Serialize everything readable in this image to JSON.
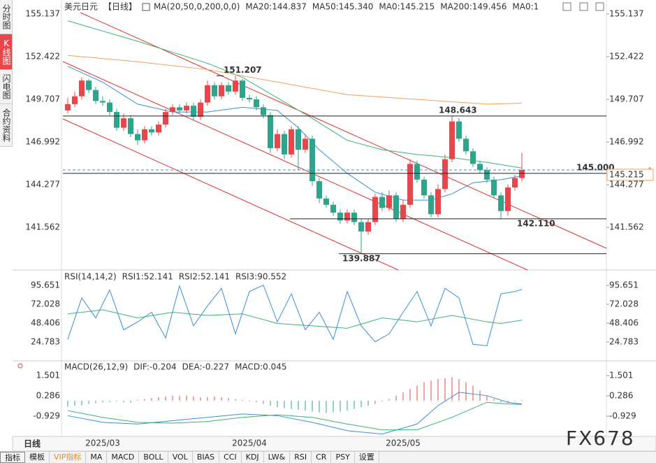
{
  "chart_data": [
    {
      "type": "candlestick",
      "title": "美元日元",
      "period": "【日线】",
      "indicator": "MA(20,50,0,200,0,0)",
      "categories": [
        null,
        null,
        null,
        null,
        null,
        "2025/03",
        null,
        null,
        null,
        null,
        null,
        null,
        null,
        null,
        null,
        null,
        null,
        null,
        null,
        null,
        null,
        null,
        null,
        null,
        null,
        null,
        "2025/04",
        null,
        null,
        null,
        null,
        null,
        null,
        null,
        null,
        null,
        null,
        null,
        null,
        null,
        null,
        null,
        null,
        null,
        null,
        null,
        null,
        null,
        "2025/05",
        null,
        null,
        null,
        null,
        null,
        null,
        null,
        null,
        null,
        null,
        null,
        null,
        null,
        null,
        null,
        null,
        null
      ],
      "open": [
        149.0,
        149.4,
        149.9,
        150.9,
        150.3,
        149.6,
        149.5,
        148.9,
        147.9,
        148.5,
        147.5,
        147.1,
        147.8,
        147.6,
        148.1,
        148.9,
        149.2,
        149.0,
        149.3,
        148.6,
        149.5,
        150.6,
        149.9,
        150.6,
        150.2,
        150.9,
        149.8,
        149.7,
        149.2,
        148.7,
        146.6,
        147.5,
        146.2,
        147.8,
        146.5,
        147.2,
        144.5,
        143.4,
        143.0,
        142.5,
        142.0,
        142.5,
        141.9,
        141.3,
        141.9,
        143.5,
        142.8,
        143.6,
        142.1,
        143.0,
        145.6,
        144.6,
        143.6,
        142.4,
        144.0,
        145.9,
        148.3,
        147.2,
        146.4,
        145.6,
        145.2,
        144.6,
        143.6,
        142.6,
        144.1,
        144.7
      ],
      "high": [
        149.8,
        150.2,
        151.1,
        151.0,
        150.5,
        149.9,
        149.7,
        149.1,
        148.8,
        148.7,
        147.8,
        148.0,
        148.0,
        148.3,
        149.1,
        149.4,
        149.4,
        149.5,
        149.5,
        149.7,
        150.9,
        150.8,
        150.8,
        150.8,
        151.207,
        151.0,
        150.0,
        149.9,
        149.4,
        148.9,
        147.8,
        147.7,
        148.0,
        148.0,
        147.5,
        147.4,
        144.7,
        143.6,
        143.2,
        142.7,
        142.7,
        142.7,
        142.1,
        142.1,
        143.7,
        143.8,
        143.9,
        143.8,
        143.3,
        145.9,
        145.8,
        144.8,
        143.8,
        144.3,
        146.2,
        148.643,
        148.5,
        147.4,
        146.6,
        145.8,
        145.4,
        144.8,
        143.8,
        144.3,
        144.9,
        146.3
      ],
      "low": [
        148.8,
        149.2,
        149.7,
        150.1,
        149.4,
        149.3,
        148.7,
        147.7,
        147.7,
        147.3,
        146.8,
        146.9,
        147.4,
        147.4,
        147.9,
        148.7,
        148.8,
        148.8,
        148.4,
        148.4,
        149.3,
        149.7,
        149.7,
        150.0,
        150.0,
        149.6,
        149.5,
        149.0,
        148.5,
        146.3,
        146.4,
        145.9,
        146.0,
        145.2,
        146.3,
        144.2,
        143.1,
        142.8,
        142.3,
        141.8,
        141.8,
        141.7,
        139.887,
        141.1,
        141.7,
        142.6,
        142.6,
        141.9,
        141.9,
        142.8,
        144.4,
        143.4,
        142.2,
        142.2,
        143.8,
        145.7,
        147.0,
        146.2,
        145.4,
        145.0,
        144.4,
        143.4,
        142.11,
        142.3,
        143.9,
        144.5
      ],
      "close": [
        149.4,
        149.9,
        150.9,
        150.3,
        149.6,
        149.5,
        148.9,
        147.9,
        148.5,
        147.5,
        147.1,
        147.8,
        147.6,
        148.1,
        148.9,
        149.2,
        149.0,
        149.3,
        148.6,
        149.5,
        150.6,
        149.9,
        150.6,
        150.2,
        150.9,
        149.8,
        149.7,
        149.2,
        148.7,
        146.6,
        147.5,
        146.2,
        147.8,
        146.5,
        147.2,
        144.5,
        143.4,
        143.0,
        142.5,
        142.0,
        142.5,
        141.9,
        141.3,
        141.9,
        143.5,
        142.8,
        143.6,
        142.1,
        143.0,
        145.6,
        144.6,
        143.6,
        142.4,
        144.0,
        145.9,
        148.3,
        147.2,
        146.4,
        145.6,
        145.2,
        144.6,
        143.6,
        142.6,
        144.1,
        144.7,
        145.215
      ],
      "up_color": "#e8464a",
      "down_color": "#2ea58a",
      "series": [
        {
          "name": "MA20:144.837",
          "color": "#3b8fd6",
          "x": [
            0,
            5,
            10,
            15,
            20,
            25,
            30,
            33,
            36,
            40,
            44,
            48,
            52,
            55,
            58,
            62,
            65
          ],
          "values": [
            151.8,
            150.8,
            149.4,
            148.9,
            148.9,
            149.2,
            149.0,
            147.9,
            146.5,
            145.0,
            143.8,
            143.3,
            143.3,
            143.7,
            144.4,
            144.6,
            144.837
          ]
        },
        {
          "name": "MA50:145.340",
          "color": "#3cb371",
          "x": [
            0,
            10,
            20,
            25,
            30,
            35,
            40,
            45,
            50,
            55,
            60,
            65
          ],
          "values": [
            154.7,
            153.4,
            152.0,
            151.1,
            149.8,
            148.5,
            147.1,
            146.5,
            146.2,
            146.0,
            145.7,
            145.34
          ]
        },
        {
          "name": "MA200:149.456",
          "color": "#f0a060",
          "x": [
            0,
            10,
            20,
            30,
            40,
            50,
            60,
            65
          ],
          "values": [
            152.5,
            152.1,
            151.6,
            150.8,
            150.0,
            149.7,
            149.4,
            149.456
          ]
        }
      ],
      "extra_legend": [
        {
          "name": "MA0:145.215",
          "color": "#3b8fd6"
        },
        {
          "name": "MA0:1",
          "color": "#e88ad0"
        }
      ],
      "levels": {
        "values": [
          151.207,
          148.643,
          145.0,
          145.215,
          142.11,
          139.887
        ],
        "value_labels": [
          "151.207",
          "148.643",
          "145.000",
          "145.215",
          "142.110",
          "139.887"
        ]
      },
      "ylim": [
        138.9,
        155.8
      ],
      "yticks": [
        155.137,
        152.422,
        149.707,
        146.992,
        144.277,
        141.562
      ]
    },
    {
      "type": "line",
      "title": "RSI(14,14,2)",
      "series": [
        {
          "name": "RSI1:52.141",
          "color": "#3b8fd6",
          "x": [
            0,
            5,
            10,
            15,
            20,
            25,
            30,
            35,
            40,
            45,
            50,
            55,
            60,
            62,
            65
          ],
          "values": [
            60,
            65,
            55,
            62,
            58,
            60,
            48,
            45,
            42,
            55,
            50,
            58,
            50,
            48,
            52.141
          ]
        },
        {
          "name": "RSI3:90.552",
          "color": "#3b8fd6",
          "x": [
            0,
            2,
            4,
            6,
            8,
            10,
            12,
            14,
            16,
            18,
            20,
            22,
            24,
            26,
            28,
            30,
            32,
            34,
            36,
            38,
            40,
            42,
            44,
            46,
            48,
            50,
            52,
            54,
            56,
            58,
            60,
            62,
            64,
            65
          ],
          "values": [
            28,
            80,
            55,
            90,
            40,
            50,
            62,
            30,
            95,
            45,
            70,
            92,
            35,
            88,
            96,
            50,
            85,
            40,
            62,
            28,
            88,
            45,
            25,
            35,
            62,
            88,
            45,
            92,
            80,
            22,
            20,
            85,
            88,
            90.552
          ]
        }
      ],
      "extra_legend": [
        {
          "name": "RSI2:52.141",
          "color": "#3cb371"
        }
      ],
      "ylim": [
        2.0,
        113.2
      ],
      "yticks": [
        95.651,
        72.028,
        48.406,
        24.783
      ]
    },
    {
      "type": "macd",
      "title": "MACD(26,12,9)",
      "histogram_name": "MACD:0.045",
      "histogram": [
        -0.35,
        -0.3,
        -0.28,
        -0.2,
        -0.15,
        -0.1,
        -0.08,
        -0.05,
        -0.1,
        -0.12,
        0.05,
        0.1,
        0.15,
        0.2,
        0.25,
        0.3,
        0.28,
        0.3,
        0.25,
        0.2,
        0.22,
        0.25,
        0.2,
        0.15,
        0.1,
        0.05,
        -0.05,
        -0.1,
        -0.2,
        -0.3,
        -0.4,
        -0.45,
        -0.5,
        -0.55,
        -0.6,
        -0.65,
        -0.7,
        -0.72,
        -0.7,
        -0.65,
        -0.6,
        -0.5,
        -0.4,
        -0.3,
        -0.2,
        -0.05,
        0.1,
        0.3,
        0.5,
        0.7,
        0.9,
        1.1,
        1.2,
        1.3,
        1.35,
        1.4,
        1.3,
        1.1,
        0.9,
        0.6,
        0.3,
        0.1,
        -0.1,
        -0.15,
        -0.05,
        0.045
      ],
      "series": [
        {
          "name": "DIF:-0.204",
          "color": "#3b8fd6",
          "x": [
            0,
            5,
            10,
            15,
            20,
            25,
            30,
            35,
            40,
            45,
            50,
            53,
            56,
            60,
            63,
            65
          ],
          "values": [
            -0.9,
            -1.3,
            -1.4,
            -1.2,
            -1.0,
            -0.8,
            -0.9,
            -1.3,
            -1.8,
            -2.0,
            -1.4,
            -0.3,
            0.5,
            0.3,
            -0.1,
            -0.204
          ]
        },
        {
          "name": "DEA:-0.227",
          "color": "#3cb371",
          "x": [
            0,
            5,
            10,
            15,
            20,
            25,
            30,
            35,
            40,
            45,
            50,
            55,
            60,
            63,
            65
          ],
          "values": [
            -0.6,
            -1.0,
            -1.3,
            -1.35,
            -1.25,
            -1.0,
            -0.85,
            -1.0,
            -1.4,
            -1.75,
            -1.75,
            -1.0,
            -0.1,
            -0.2,
            -0.227
          ]
        }
      ],
      "ylim": [
        -2.06,
        2.34
      ],
      "yticks": [
        1.501,
        0.286,
        -0.929
      ]
    }
  ],
  "ui": {
    "sidebar": [
      "分时图",
      "K线图",
      "闪电图",
      "合约资料"
    ],
    "period_button": "日线",
    "toolbar": [
      "指标",
      "模板",
      "VIP指标",
      "MA",
      "MACD",
      "BOLL",
      "VOL",
      "BIAS",
      "CCI",
      "KDJ",
      "LW&",
      "RSI",
      "CR",
      "PSY",
      "设置"
    ],
    "watermark": "FX678"
  }
}
